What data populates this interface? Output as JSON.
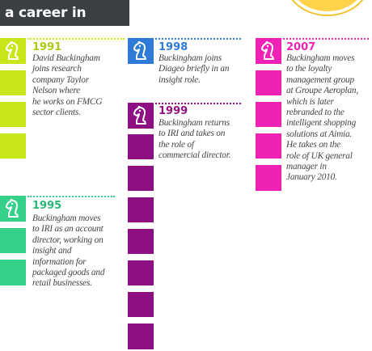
{
  "header": {
    "title": "a career in dates"
  },
  "colors": {
    "lime": "#c8e619",
    "green": "#37d08a",
    "blue": "#2f7ad6",
    "purple": "#8e0f82",
    "magenta": "#ee23b5",
    "dark": "#3b3f44",
    "sun": "#ffd24a"
  },
  "timeline": [
    {
      "year": "1991",
      "desc": [
        "David Buckingham",
        "joins research",
        "company Taylor",
        "Nelson where",
        "he works on FMCG",
        "sector clients."
      ],
      "icon": "chess-knight-icon"
    },
    {
      "year": "1995",
      "desc": [
        "Buckingham moves",
        "to IRI as an account",
        "director, working on",
        "insight and",
        "information for",
        "packaged goods and",
        "retail businesses."
      ],
      "icon": "chess-knight-icon"
    },
    {
      "year": "1998",
      "desc": [
        "Buckingham joins",
        "Diageo briefly in an",
        "insight role."
      ],
      "icon": "chess-knight-icon"
    },
    {
      "year": "1999",
      "desc": [
        "Buckingham returns",
        "to IRI and takes on",
        "the role of",
        "commercial director."
      ],
      "icon": "chess-knight-icon"
    },
    {
      "year": "2007",
      "desc": [
        "Buckingham moves",
        "to the loyalty",
        "management group",
        "at Groupe Aeroplan,",
        "which is later",
        "rebranded to the",
        "intelligent shopping",
        "solutions at Aimia.",
        "He takes on the",
        "role of UK general",
        "manager in",
        "January 2010."
      ],
      "icon": "chess-knight-icon"
    }
  ]
}
